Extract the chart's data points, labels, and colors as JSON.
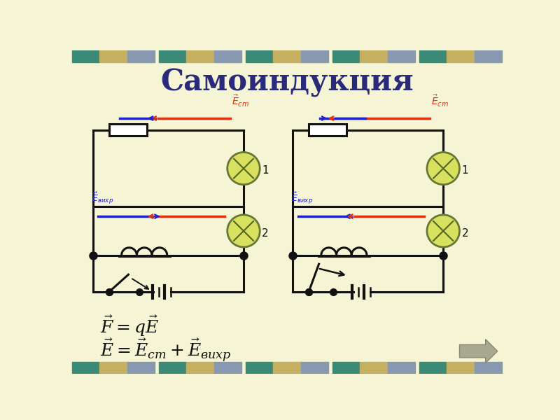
{
  "title": "Самоиндукция",
  "bg_color": "#f5f5d5",
  "title_color": "#2a2a7a",
  "red_color": "#dd3311",
  "blue_color": "#2222cc",
  "black_color": "#111111"
}
